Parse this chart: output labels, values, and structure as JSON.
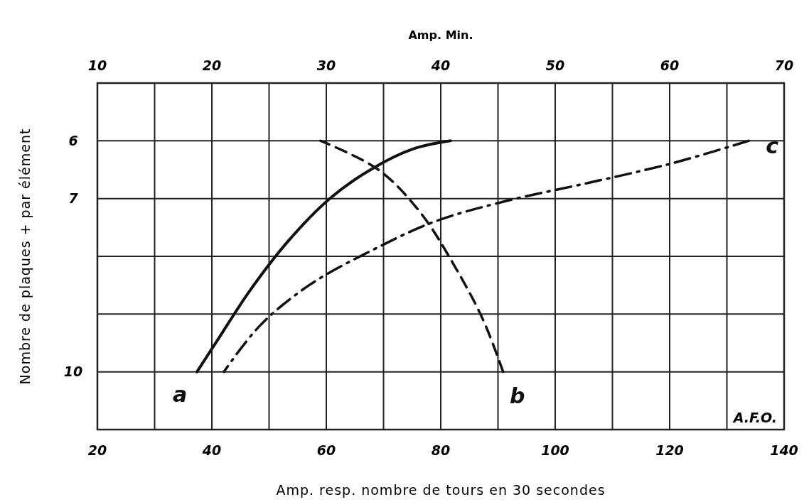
{
  "chart_data": {
    "type": "line",
    "xlabel": "Amp. resp. nombre de tours en 30 secondes",
    "x2label": "Amp. Min.",
    "ylabel": "Nombre de plaques + par élément",
    "xlim": [
      20,
      140
    ],
    "xticks": [
      20,
      40,
      60,
      80,
      100,
      120,
      140
    ],
    "x2lim": [
      10,
      70
    ],
    "x2ticks": [
      10,
      20,
      30,
      40,
      50,
      60,
      70
    ],
    "ylim": [
      11,
      5
    ],
    "yticks": [
      6,
      7,
      {
        "value": 8,
        "label": null
      },
      {
        "value": 9,
        "label": null
      },
      10
    ],
    "grid": true,
    "marker": "none",
    "series": [
      {
        "name": "a",
        "color": "#111111",
        "line_style": "solid",
        "x": [
          37.4,
          41,
          46.6,
          53.3,
          60.6,
          67.9,
          75.2,
          81.7
        ],
        "values": [
          10,
          9.45,
          8.6,
          7.74,
          7.0,
          6.49,
          6.14,
          6.0
        ]
      },
      {
        "name": "b",
        "color": "#111111",
        "line_style": "dashed",
        "x": [
          90.9,
          87.4,
          82.6,
          76.5,
          69.1,
          59
        ],
        "values": [
          10,
          9.1,
          8.2,
          7.25,
          6.5,
          6.0
        ]
      },
      {
        "name": "c",
        "color": "#111111",
        "line_style": "dashdot",
        "x": [
          133.8,
          120.4,
          105.7,
          91.1,
          78.9,
          67.9,
          57,
          48.4,
          42.1
        ],
        "values": [
          6.0,
          6.39,
          6.73,
          7.05,
          7.4,
          7.9,
          8.5,
          9.2,
          10
        ]
      }
    ],
    "annotations": [
      "A.F.O."
    ]
  }
}
